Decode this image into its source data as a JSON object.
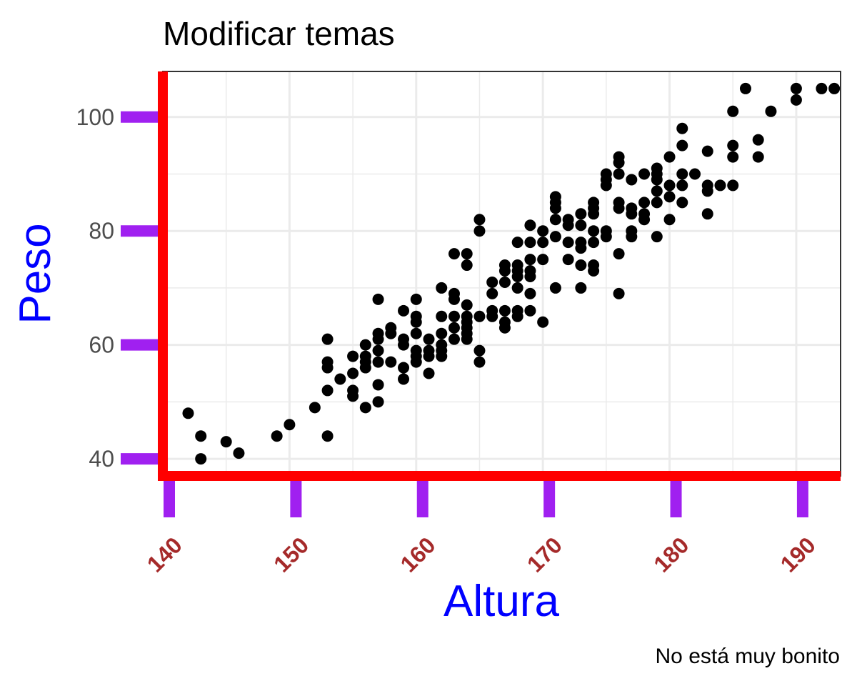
{
  "chart_data": {
    "type": "scatter",
    "title": "Modificar temas",
    "xlabel": "Altura",
    "ylabel": "Peso",
    "caption": "No está muy bonito",
    "xlim": [
      140,
      193.5
    ],
    "ylim": [
      37,
      108
    ],
    "x_ticks": [
      140,
      150,
      160,
      170,
      180,
      190
    ],
    "x_tick_labels": [
      "140",
      "150",
      "160",
      "170",
      "180",
      "190"
    ],
    "y_ticks": [
      40,
      60,
      80,
      100
    ],
    "y_tick_labels": [
      "40",
      "60",
      "80",
      "100"
    ],
    "grid": true,
    "colors": {
      "points": "#000000",
      "axis_lines": "#ff0000",
      "ticks": "#a020f0",
      "axis_titles": "#0000ff",
      "x_tick_labels": "#a52a2a",
      "grid": "#ebebeb",
      "panel_border": "#333333"
    },
    "points": [
      [
        142,
        48
      ],
      [
        143,
        44
      ],
      [
        143,
        40
      ],
      [
        145,
        43
      ],
      [
        146,
        41
      ],
      [
        149,
        44
      ],
      [
        150,
        46
      ],
      [
        152,
        49
      ],
      [
        153,
        61
      ],
      [
        153,
        57
      ],
      [
        153,
        56
      ],
      [
        153,
        52
      ],
      [
        153,
        44
      ],
      [
        154,
        54
      ],
      [
        155,
        58
      ],
      [
        155,
        55
      ],
      [
        155,
        52
      ],
      [
        155,
        51
      ],
      [
        156,
        60
      ],
      [
        156,
        58
      ],
      [
        156,
        57
      ],
      [
        156,
        56
      ],
      [
        156,
        49
      ],
      [
        157,
        62
      ],
      [
        157,
        61
      ],
      [
        157,
        59
      ],
      [
        157,
        57
      ],
      [
        157,
        53
      ],
      [
        157,
        50
      ],
      [
        157,
        68
      ],
      [
        158,
        63
      ],
      [
        158,
        62
      ],
      [
        158,
        57
      ],
      [
        159,
        66
      ],
      [
        159,
        61
      ],
      [
        159,
        60
      ],
      [
        159,
        56
      ],
      [
        159,
        54
      ],
      [
        160,
        68
      ],
      [
        160,
        65
      ],
      [
        160,
        64
      ],
      [
        160,
        62
      ],
      [
        160,
        59
      ],
      [
        160,
        58
      ],
      [
        160,
        57
      ],
      [
        161,
        61
      ],
      [
        161,
        59
      ],
      [
        161,
        58
      ],
      [
        161,
        55
      ],
      [
        162,
        70
      ],
      [
        162,
        65
      ],
      [
        162,
        62
      ],
      [
        162,
        60
      ],
      [
        162,
        59
      ],
      [
        162,
        58
      ],
      [
        163,
        76
      ],
      [
        163,
        69
      ],
      [
        163,
        68
      ],
      [
        163,
        65
      ],
      [
        163,
        63
      ],
      [
        163,
        61
      ],
      [
        164,
        76
      ],
      [
        164,
        74
      ],
      [
        164,
        67
      ],
      [
        164,
        65
      ],
      [
        164,
        64
      ],
      [
        164,
        63
      ],
      [
        164,
        62
      ],
      [
        164,
        61
      ],
      [
        165,
        82
      ],
      [
        165,
        80
      ],
      [
        165,
        65
      ],
      [
        165,
        59
      ],
      [
        165,
        57
      ],
      [
        166,
        71
      ],
      [
        166,
        69
      ],
      [
        166,
        66
      ],
      [
        166,
        65
      ],
      [
        167,
        74
      ],
      [
        167,
        73
      ],
      [
        167,
        71
      ],
      [
        167,
        66
      ],
      [
        167,
        64
      ],
      [
        167,
        63
      ],
      [
        168,
        78
      ],
      [
        168,
        74
      ],
      [
        168,
        73
      ],
      [
        168,
        72
      ],
      [
        168,
        70
      ],
      [
        168,
        66
      ],
      [
        168,
        65
      ],
      [
        169,
        81
      ],
      [
        169,
        78
      ],
      [
        169,
        75
      ],
      [
        169,
        73
      ],
      [
        169,
        72
      ],
      [
        169,
        69
      ],
      [
        169,
        66
      ],
      [
        170,
        80
      ],
      [
        170,
        78
      ],
      [
        170,
        75
      ],
      [
        170,
        64
      ],
      [
        171,
        86
      ],
      [
        171,
        85
      ],
      [
        171,
        84
      ],
      [
        171,
        82
      ],
      [
        171,
        79
      ],
      [
        171,
        70
      ],
      [
        172,
        82
      ],
      [
        172,
        81
      ],
      [
        172,
        78
      ],
      [
        172,
        75
      ],
      [
        173,
        83
      ],
      [
        173,
        81
      ],
      [
        173,
        78
      ],
      [
        173,
        77
      ],
      [
        173,
        74
      ],
      [
        173,
        70
      ],
      [
        174,
        85
      ],
      [
        174,
        84
      ],
      [
        174,
        83
      ],
      [
        174,
        80
      ],
      [
        174,
        78
      ],
      [
        174,
        74
      ],
      [
        174,
        73
      ],
      [
        175,
        90
      ],
      [
        175,
        89
      ],
      [
        175,
        88
      ],
      [
        175,
        80
      ],
      [
        175,
        79
      ],
      [
        176,
        93
      ],
      [
        176,
        92
      ],
      [
        176,
        90
      ],
      [
        176,
        85
      ],
      [
        176,
        84
      ],
      [
        176,
        76
      ],
      [
        176,
        69
      ],
      [
        177,
        89
      ],
      [
        177,
        84
      ],
      [
        177,
        83
      ],
      [
        177,
        80
      ],
      [
        177,
        79
      ],
      [
        178,
        90
      ],
      [
        178,
        85
      ],
      [
        178,
        83
      ],
      [
        178,
        82
      ],
      [
        179,
        91
      ],
      [
        179,
        90
      ],
      [
        179,
        89
      ],
      [
        179,
        87
      ],
      [
        179,
        85
      ],
      [
        179,
        79
      ],
      [
        180,
        93
      ],
      [
        180,
        88
      ],
      [
        180,
        86
      ],
      [
        180,
        82
      ],
      [
        181,
        98
      ],
      [
        181,
        95
      ],
      [
        181,
        90
      ],
      [
        181,
        88
      ],
      [
        181,
        85
      ],
      [
        182,
        90
      ],
      [
        183,
        94
      ],
      [
        183,
        88
      ],
      [
        183,
        87
      ],
      [
        183,
        83
      ],
      [
        184,
        88
      ],
      [
        185,
        101
      ],
      [
        185,
        95
      ],
      [
        185,
        93
      ],
      [
        185,
        88
      ],
      [
        186,
        105
      ],
      [
        187,
        96
      ],
      [
        187,
        93
      ],
      [
        188,
        101
      ],
      [
        190,
        105
      ],
      [
        190,
        103
      ],
      [
        192,
        105
      ],
      [
        193,
        105
      ]
    ]
  }
}
